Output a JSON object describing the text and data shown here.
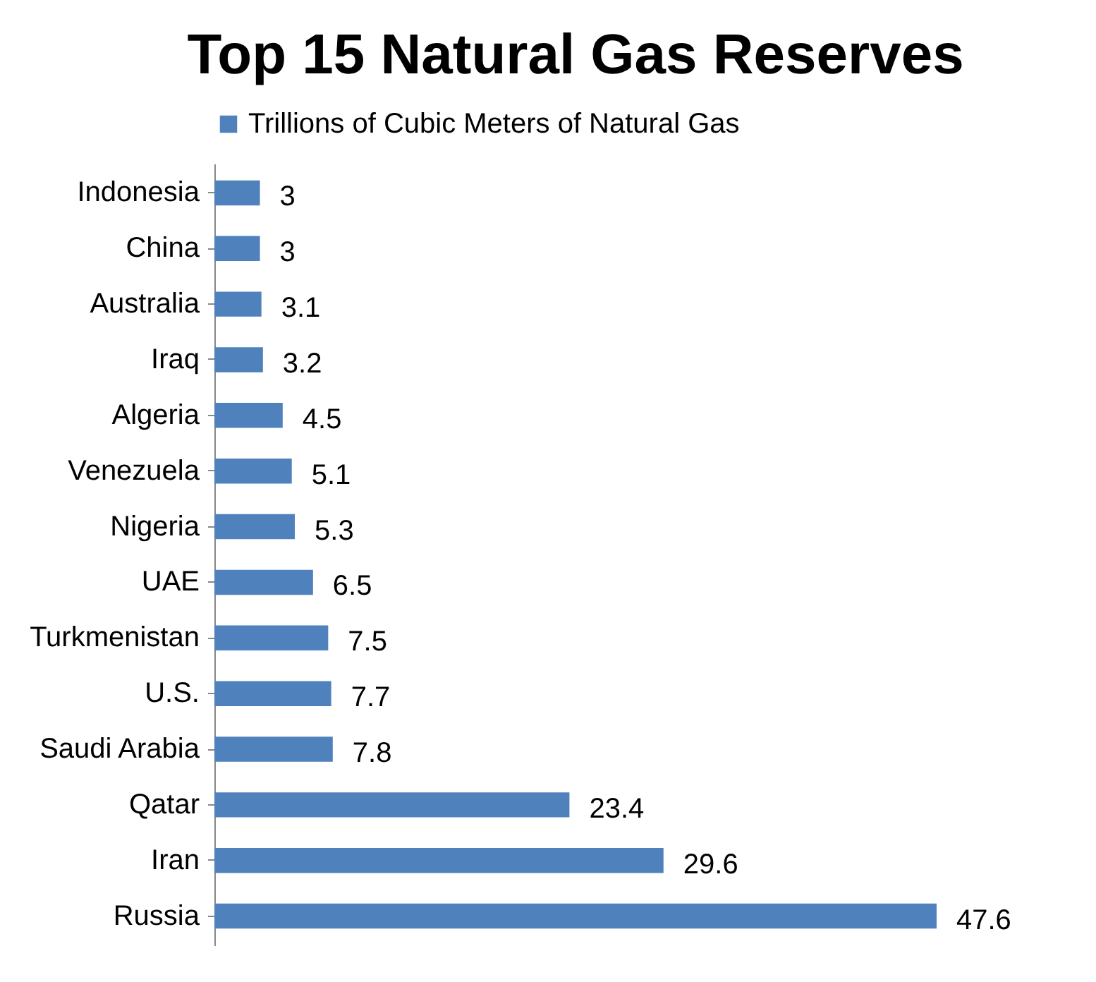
{
  "chart_data": {
    "type": "bar",
    "orientation": "horizontal",
    "title": "Top 15 Natural Gas Reserves",
    "categories": [
      "Indonesia",
      "China",
      "Australia",
      "Iraq",
      "Algeria",
      "Venezuela",
      "Nigeria",
      "UAE",
      "Turkmenistan",
      "U.S.",
      "Saudi Arabia",
      "Qatar",
      "Iran",
      "Russia"
    ],
    "series": [
      {
        "name": "Trillions of Cubic Meters of Natural Gas",
        "color": "#4f81bd",
        "values": [
          3,
          3,
          3.1,
          3.2,
          4.5,
          5.1,
          5.3,
          6.5,
          7.5,
          7.7,
          7.8,
          23.4,
          29.6,
          47.6
        ]
      }
    ],
    "data_labels": true,
    "legend": "top"
  }
}
